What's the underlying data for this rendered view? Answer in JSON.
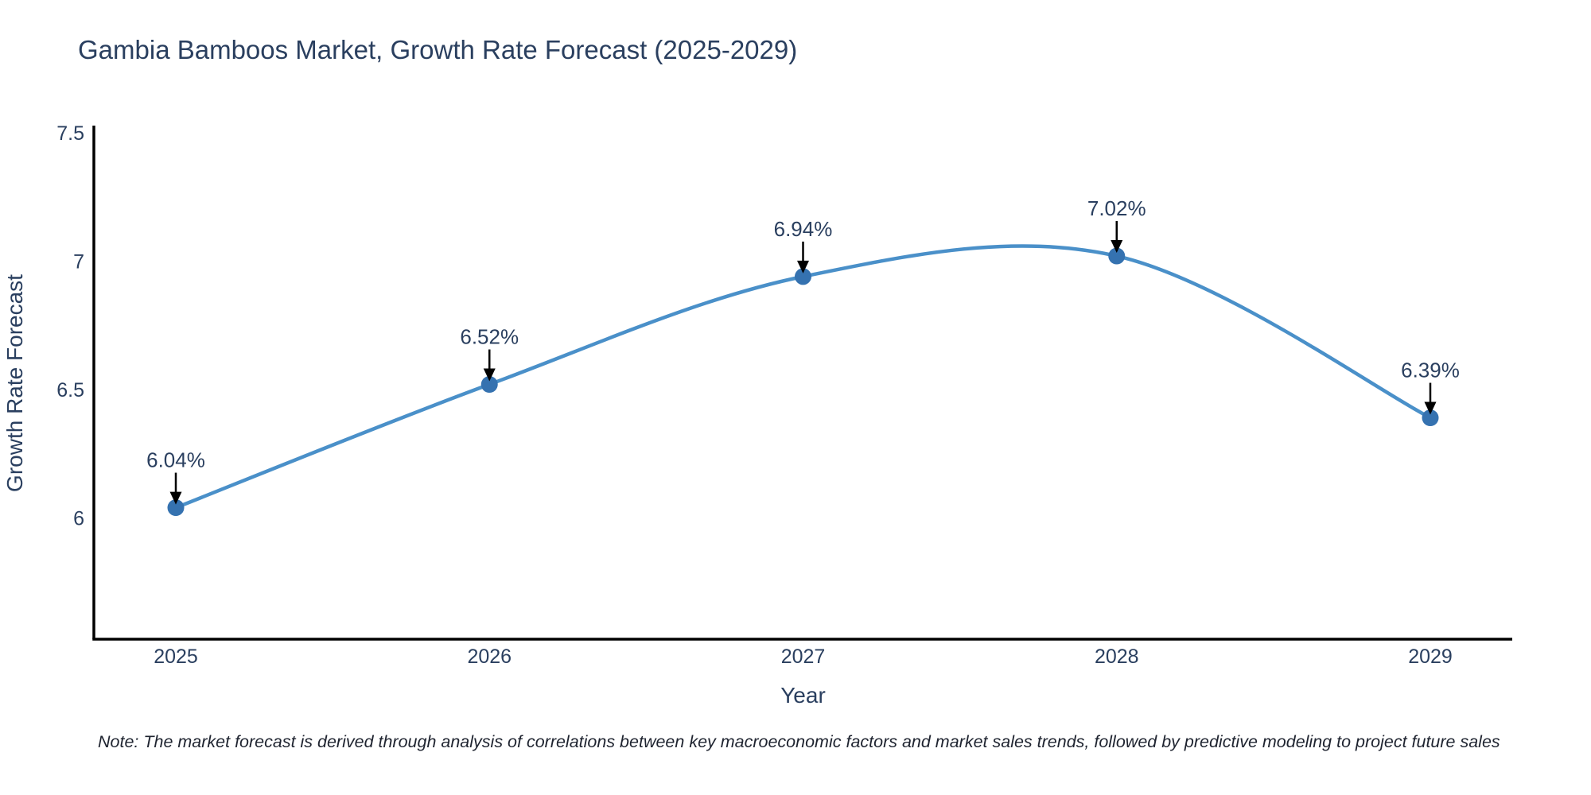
{
  "title": "Gambia Bamboos Market, Growth Rate Forecast (2025-2029)",
  "note": "Note: The market forecast is derived through analysis of correlations between key macroeconomic factors and market sales trends, followed by predictive modeling to project future sales",
  "colors": {
    "title_text": "#2a3f5f",
    "tick_text": "#2a3f5f",
    "annotation_text": "#2a3f5f",
    "axis_line": "#000000",
    "series_line": "#4a90c9",
    "marker_fill": "#3572b0",
    "arrow": "#000000",
    "background": "#ffffff"
  },
  "chart_data": {
    "type": "line",
    "title": "Gambia Bamboos Market, Growth Rate Forecast (2025-2029)",
    "xlabel": "Year",
    "ylabel": "Growth Rate Forecast",
    "x": [
      2025,
      2026,
      2027,
      2028,
      2029
    ],
    "y": [
      6.04,
      6.52,
      6.94,
      7.02,
      6.39
    ],
    "point_labels": [
      "6.04%",
      "6.52%",
      "6.94%",
      "7.02%",
      "6.39%"
    ],
    "x_tick_labels": [
      "2025",
      "2026",
      "2027",
      "2028",
      "2029"
    ],
    "y_tick_values": [
      7.5,
      7,
      6.5,
      6
    ],
    "y_tick_labels": [
      "7.5",
      "7",
      "6.5",
      "6"
    ],
    "ylim": [
      5.5,
      7.5
    ],
    "line_shape": "spline",
    "grid": false,
    "legend": "none",
    "annotations_have_arrows": true
  }
}
